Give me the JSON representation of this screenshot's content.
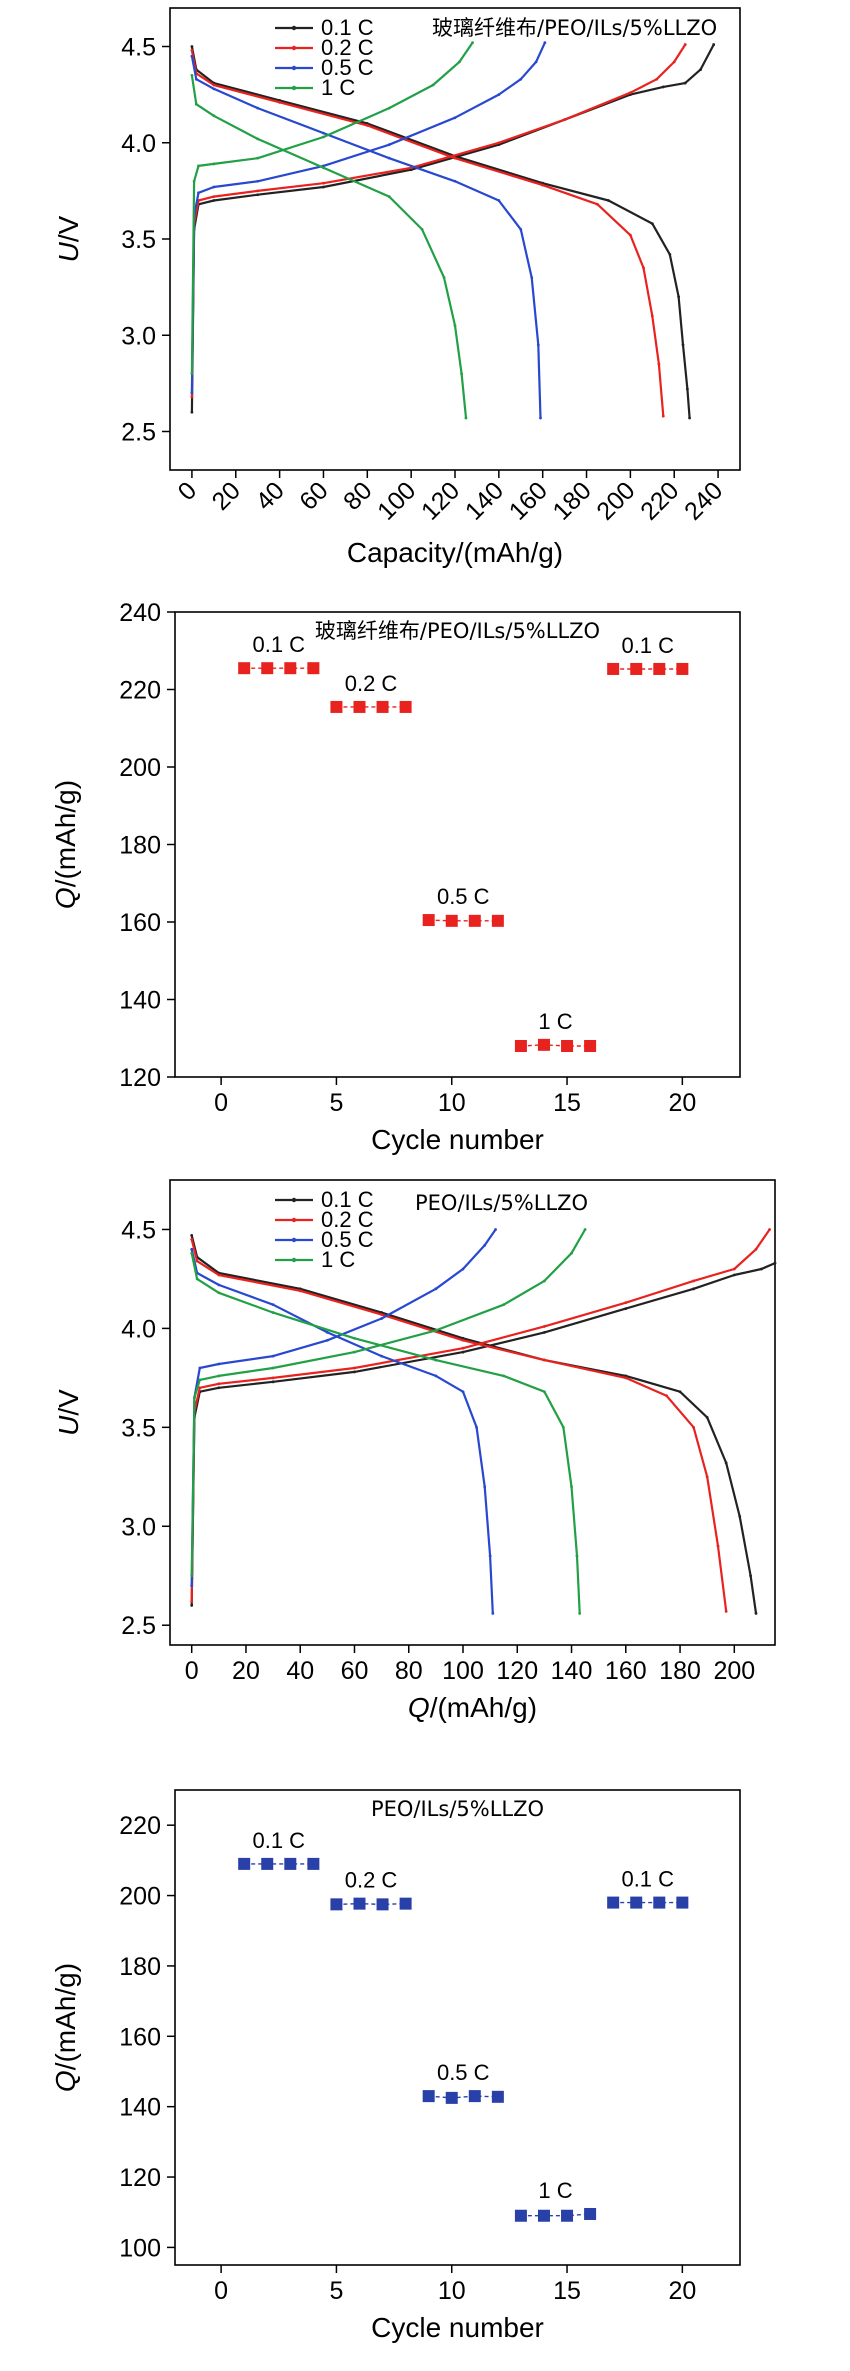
{
  "chart_data": [
    {
      "id": "c1",
      "type": "line",
      "title": "玻璃纤维布/PEO/ILs/5%LLZO",
      "xlabel": "Capacity/(mAh/g)",
      "ylabel": "U/V",
      "ylabel_main": "U",
      "ylabel_unit": "/V",
      "xlim": [
        -10,
        250
      ],
      "ylim": [
        2.3,
        4.7
      ],
      "xticks": [
        0,
        20,
        40,
        60,
        80,
        100,
        120,
        140,
        160,
        180,
        200,
        220,
        240
      ],
      "yticks": [
        2.5,
        3.0,
        3.5,
        4.0,
        4.5
      ],
      "ytick_labels": [
        "2.5",
        "3.0",
        "3.5",
        "4.0",
        "4.5"
      ],
      "xticks_rotated": true,
      "series": [
        {
          "name": "0.1 C",
          "color": "#222222",
          "charge": {
            "x": [
              0,
              1,
              3,
              10,
              30,
              60,
              100,
              140,
              170,
              200,
              215,
              225,
              232,
              238
            ],
            "y": [
              2.6,
              3.55,
              3.68,
              3.7,
              3.73,
              3.77,
              3.86,
              3.99,
              4.12,
              4.25,
              4.29,
              4.31,
              4.38,
              4.51
            ]
          },
          "discharge": {
            "x": [
              0,
              2,
              10,
              40,
              80,
              120,
              160,
              190,
              210,
              218,
              222,
              224,
              226,
              227
            ],
            "y": [
              4.5,
              4.38,
              4.31,
              4.22,
              4.1,
              3.93,
              3.79,
              3.7,
              3.58,
              3.42,
              3.2,
              2.95,
              2.72,
              2.57
            ]
          }
        },
        {
          "name": "0.2 C",
          "color": "#e8231f",
          "charge": {
            "x": [
              0,
              1,
              3,
              10,
              30,
              60,
              100,
              140,
              170,
              200,
              212,
              220,
              225
            ],
            "y": [
              2.68,
              3.58,
              3.7,
              3.72,
              3.75,
              3.79,
              3.87,
              4.0,
              4.12,
              4.26,
              4.33,
              4.42,
              4.51
            ]
          },
          "discharge": {
            "x": [
              0,
              2,
              10,
              40,
              80,
              120,
              160,
              185,
              200,
              206,
              210,
              213,
              215
            ],
            "y": [
              4.48,
              4.36,
              4.3,
              4.21,
              4.09,
              3.92,
              3.78,
              3.68,
              3.52,
              3.35,
              3.1,
              2.85,
              2.58
            ]
          }
        },
        {
          "name": "0.5 C",
          "color": "#2848d0",
          "charge": {
            "x": [
              0,
              1,
              3,
              10,
              30,
              60,
              90,
              120,
              140,
              150,
              157,
              161
            ],
            "y": [
              2.7,
              3.62,
              3.74,
              3.77,
              3.8,
              3.88,
              3.99,
              4.13,
              4.25,
              4.33,
              4.42,
              4.52
            ]
          },
          "discharge": {
            "x": [
              0,
              2,
              10,
              30,
              60,
              90,
              120,
              140,
              150,
              155,
              158,
              159
            ],
            "y": [
              4.45,
              4.33,
              4.28,
              4.18,
              4.05,
              3.92,
              3.8,
              3.7,
              3.55,
              3.3,
              2.95,
              2.57
            ]
          }
        },
        {
          "name": "1 C",
          "color": "#22a046",
          "charge": {
            "x": [
              0,
              1,
              3,
              10,
              30,
              60,
              90,
              110,
              122,
              128
            ],
            "y": [
              2.8,
              3.8,
              3.88,
              3.89,
              3.92,
              4.03,
              4.18,
              4.3,
              4.42,
              4.52
            ]
          },
          "discharge": {
            "x": [
              0,
              2,
              10,
              30,
              60,
              90,
              105,
              115,
              120,
              123,
              125
            ],
            "y": [
              4.35,
              4.2,
              4.14,
              4.02,
              3.87,
              3.72,
              3.55,
              3.3,
              3.05,
              2.8,
              2.57
            ]
          }
        }
      ],
      "legend_position": "top-center"
    },
    {
      "id": "c2",
      "type": "scatter",
      "title": "玻璃纤维布/PEO/ILs/5%LLZO",
      "xlabel": "Cycle number",
      "ylabel": "Q/(mAh/g)",
      "ylabel_main": "Q",
      "ylabel_unit": "/(mAh/g)",
      "xlim": [
        -2,
        22.5
      ],
      "ylim": [
        120,
        240
      ],
      "xticks": [
        0,
        5,
        10,
        15,
        20
      ],
      "yticks": [
        120,
        140,
        160,
        180,
        200,
        220,
        240
      ],
      "marker_color": "#e8231f",
      "groups": [
        {
          "label": "0.1 C",
          "x": [
            1,
            2,
            3,
            4
          ],
          "y": [
            225.5,
            225.5,
            225.5,
            225.5
          ]
        },
        {
          "label": "0.2 C",
          "x": [
            5,
            6,
            7,
            8
          ],
          "y": [
            215.5,
            215.5,
            215.5,
            215.5
          ]
        },
        {
          "label": "0.5 C",
          "x": [
            9,
            10,
            11,
            12
          ],
          "y": [
            160.5,
            160.3,
            160.3,
            160.3
          ]
        },
        {
          "label": "1 C",
          "x": [
            13,
            14,
            15,
            16
          ],
          "y": [
            128.0,
            128.3,
            128.0,
            128.0
          ]
        },
        {
          "label": "0.1 C",
          "x": [
            17,
            18,
            19,
            20
          ],
          "y": [
            225.3,
            225.3,
            225.3,
            225.3
          ]
        }
      ]
    },
    {
      "id": "c3",
      "type": "line",
      "title": "PEO/ILs/5%LLZO",
      "xlabel": "Q/(mAh/g)",
      "ylabel": "U/V",
      "ylabel_main": "U",
      "ylabel_unit": "/V",
      "xlim": [
        -8,
        215
      ],
      "ylim": [
        2.4,
        4.75
      ],
      "xticks": [
        0,
        20,
        40,
        60,
        80,
        100,
        120,
        140,
        160,
        180,
        200
      ],
      "yticks": [
        2.5,
        3.0,
        3.5,
        4.0,
        4.5
      ],
      "ytick_labels": [
        "2.5",
        "3.0",
        "3.5",
        "4.0",
        "4.5"
      ],
      "xticks_rotated": false,
      "series": [
        {
          "name": "0.1 C",
          "color": "#222222",
          "charge": {
            "x": [
              0,
              1,
              3,
              10,
              30,
              60,
              100,
              130,
              160,
              185,
              200,
              210,
              215
            ],
            "y": [
              2.6,
              3.55,
              3.68,
              3.7,
              3.73,
              3.78,
              3.88,
              3.98,
              4.1,
              4.2,
              4.27,
              4.3,
              4.33
            ]
          },
          "discharge": {
            "x": [
              0,
              2,
              10,
              40,
              70,
              100,
              130,
              160,
              180,
              190,
              197,
              202,
              206,
              208
            ],
            "y": [
              4.47,
              4.36,
              4.28,
              4.2,
              4.08,
              3.95,
              3.84,
              3.76,
              3.68,
              3.55,
              3.32,
              3.05,
              2.75,
              2.56
            ]
          }
        },
        {
          "name": "0.2 C",
          "color": "#e8231f",
          "charge": {
            "x": [
              0,
              1,
              3,
              10,
              30,
              60,
              100,
              130,
              160,
              185,
              200,
              208,
              213
            ],
            "y": [
              2.62,
              3.58,
              3.7,
              3.72,
              3.75,
              3.8,
              3.9,
              4.01,
              4.13,
              4.24,
              4.3,
              4.4,
              4.5
            ]
          },
          "discharge": {
            "x": [
              0,
              2,
              10,
              40,
              70,
              100,
              130,
              160,
              175,
              185,
              190,
              194,
              197
            ],
            "y": [
              4.45,
              4.34,
              4.27,
              4.19,
              4.07,
              3.94,
              3.84,
              3.75,
              3.66,
              3.5,
              3.25,
              2.9,
              2.57
            ]
          }
        },
        {
          "name": "0.5 C",
          "color": "#2848d0",
          "charge": {
            "x": [
              0,
              1,
              3,
              10,
              30,
              50,
              70,
              90,
              100,
              108,
              112
            ],
            "y": [
              2.7,
              3.65,
              3.8,
              3.82,
              3.86,
              3.94,
              4.05,
              4.2,
              4.3,
              4.42,
              4.5
            ]
          },
          "discharge": {
            "x": [
              0,
              2,
              10,
              30,
              50,
              70,
              90,
              100,
              105,
              108,
              110,
              111
            ],
            "y": [
              4.4,
              4.28,
              4.22,
              4.12,
              3.98,
              3.86,
              3.76,
              3.68,
              3.5,
              3.2,
              2.85,
              2.56
            ]
          }
        },
        {
          "name": "1 C",
          "color": "#22a046",
          "charge": {
            "x": [
              0,
              1,
              3,
              10,
              30,
              60,
              90,
              115,
              130,
              140,
              145
            ],
            "y": [
              2.75,
              3.65,
              3.74,
              3.76,
              3.8,
              3.88,
              3.99,
              4.12,
              4.24,
              4.38,
              4.5
            ]
          },
          "discharge": {
            "x": [
              0,
              2,
              10,
              30,
              60,
              90,
              115,
              130,
              137,
              140,
              142,
              143
            ],
            "y": [
              4.38,
              4.25,
              4.18,
              4.08,
              3.95,
              3.84,
              3.76,
              3.68,
              3.5,
              3.2,
              2.85,
              2.56
            ]
          }
        }
      ],
      "legend_position": "top-center"
    },
    {
      "id": "c4",
      "type": "scatter",
      "title": "PEO/ILs/5%LLZO",
      "xlabel": "Cycle number",
      "ylabel": "Q/(mAh/g)",
      "ylabel_main": "Q",
      "ylabel_unit": "/(mAh/g)",
      "xlim": [
        -2,
        22.5
      ],
      "ylim": [
        95,
        230
      ],
      "xticks": [
        0,
        5,
        10,
        15,
        20
      ],
      "yticks": [
        100,
        120,
        140,
        160,
        180,
        200,
        220
      ],
      "marker_color": "#2840a8",
      "groups": [
        {
          "label": "0.1 C",
          "x": [
            1,
            2,
            3,
            4
          ],
          "y": [
            209.0,
            209.0,
            209.0,
            209.0
          ]
        },
        {
          "label": "0.2 C",
          "x": [
            5,
            6,
            7,
            8
          ],
          "y": [
            197.5,
            197.7,
            197.5,
            197.7
          ]
        },
        {
          "label": "0.5 C",
          "x": [
            9,
            10,
            11,
            12
          ],
          "y": [
            143.0,
            142.5,
            143.0,
            142.8
          ]
        },
        {
          "label": "1 C",
          "x": [
            13,
            14,
            15,
            16
          ],
          "y": [
            109.0,
            109.0,
            109.0,
            109.5
          ]
        },
        {
          "label": "0.1 C",
          "x": [
            17,
            18,
            19,
            20
          ],
          "y": [
            198.0,
            198.0,
            198.0,
            198.0
          ]
        }
      ]
    }
  ]
}
